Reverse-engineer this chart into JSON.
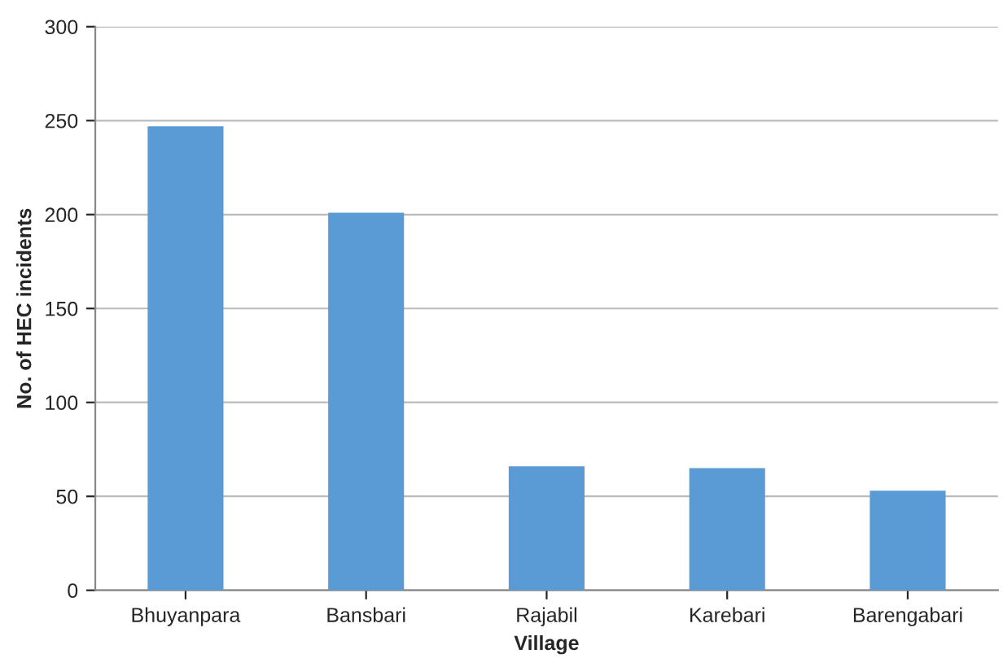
{
  "chart_data": {
    "type": "bar",
    "xlabel": "Village",
    "ylabel": "No. of HEC incidents",
    "categories": [
      "Bhuyanpara",
      "Bansbari",
      "Rajabil",
      "Karebari",
      "Barengabari"
    ],
    "values": [
      247,
      201,
      66,
      65,
      53
    ],
    "color": "#5b9bd5",
    "ylim": [
      0,
      300
    ],
    "yticks": [
      0,
      50,
      100,
      150,
      200,
      250,
      300
    ],
    "grid": "y"
  }
}
